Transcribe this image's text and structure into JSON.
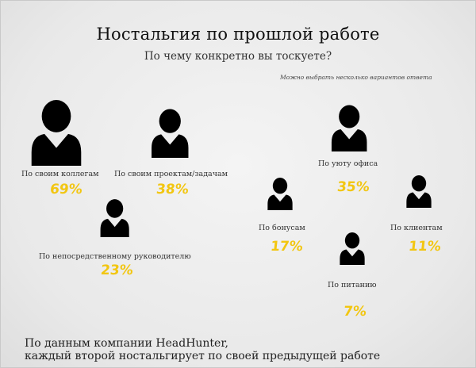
{
  "chart_data": {
    "type": "bar",
    "title": "Ностальгия по прошлой работе",
    "subtitle": "По чему конкретно вы тоскуете?",
    "note": "Можно выбрать несколько вариантов ответа",
    "categories": [
      "По своим коллегам",
      "По своим проектам/задачам",
      "По непосредственному руководителю",
      "По бонусам",
      "По уюту офиса",
      "По клиентам",
      "По питанию"
    ],
    "values": [
      69,
      38,
      23,
      17,
      35,
      11,
      7
    ],
    "value_labels": [
      "69%",
      "38%",
      "23%",
      "17%",
      "35%",
      "11%",
      "7%"
    ],
    "units": "%"
  },
  "footer": {
    "line1": "По данным компании HeadHunter,",
    "line2": "каждый второй ностальгирует по своей предыдущей работе"
  },
  "colors": {
    "icon": "#000000",
    "value": "#f2c611",
    "text": "#222222"
  },
  "icon": "person-icon"
}
